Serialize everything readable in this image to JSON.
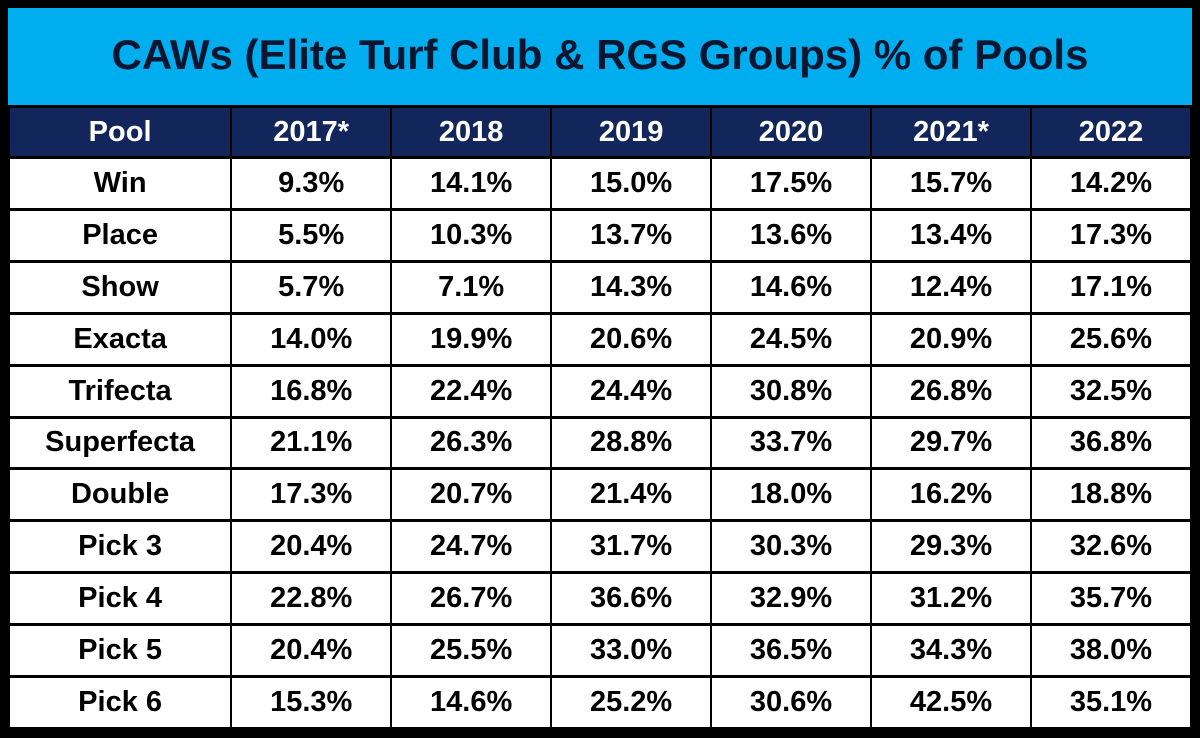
{
  "title": "CAWs (Elite Turf Club & RGS Groups) % of Pools",
  "colors": {
    "border": "#000000",
    "title_bg": "#00AEEF",
    "title_text": "#0B1730",
    "header_bg": "#12265C",
    "header_text": "#FFFFFF",
    "cell_bg": "#FFFFFF",
    "cell_text": "#000000"
  },
  "chart_data": {
    "type": "table",
    "title": "CAWs (Elite Turf Club & RGS Groups) % of Pools",
    "columns": [
      "Pool",
      "2017*",
      "2018",
      "2019",
      "2020",
      "2021*",
      "2022"
    ],
    "rows": [
      {
        "pool": "Win",
        "values": [
          "9.3%",
          "14.1%",
          "15.0%",
          "17.5%",
          "15.7%",
          "14.2%"
        ]
      },
      {
        "pool": "Place",
        "values": [
          "5.5%",
          "10.3%",
          "13.7%",
          "13.6%",
          "13.4%",
          "17.3%"
        ]
      },
      {
        "pool": "Show",
        "values": [
          "5.7%",
          "7.1%",
          "14.3%",
          "14.6%",
          "12.4%",
          "17.1%"
        ]
      },
      {
        "pool": "Exacta",
        "values": [
          "14.0%",
          "19.9%",
          "20.6%",
          "24.5%",
          "20.9%",
          "25.6%"
        ]
      },
      {
        "pool": "Trifecta",
        "values": [
          "16.8%",
          "22.4%",
          "24.4%",
          "30.8%",
          "26.8%",
          "32.5%"
        ]
      },
      {
        "pool": "Superfecta",
        "values": [
          "21.1%",
          "26.3%",
          "28.8%",
          "33.7%",
          "29.7%",
          "36.8%"
        ]
      },
      {
        "pool": "Double",
        "values": [
          "17.3%",
          "20.7%",
          "21.4%",
          "18.0%",
          "16.2%",
          "18.8%"
        ]
      },
      {
        "pool": "Pick 3",
        "values": [
          "20.4%",
          "24.7%",
          "31.7%",
          "30.3%",
          "29.3%",
          "32.6%"
        ]
      },
      {
        "pool": "Pick 4",
        "values": [
          "22.8%",
          "26.7%",
          "36.6%",
          "32.9%",
          "31.2%",
          "35.7%"
        ]
      },
      {
        "pool": "Pick 5",
        "values": [
          "20.4%",
          "25.5%",
          "33.0%",
          "36.5%",
          "34.3%",
          "38.0%"
        ]
      },
      {
        "pool": "Pick 6",
        "values": [
          "15.3%",
          "14.6%",
          "25.2%",
          "30.6%",
          "42.5%",
          "35.1%"
        ]
      }
    ]
  }
}
